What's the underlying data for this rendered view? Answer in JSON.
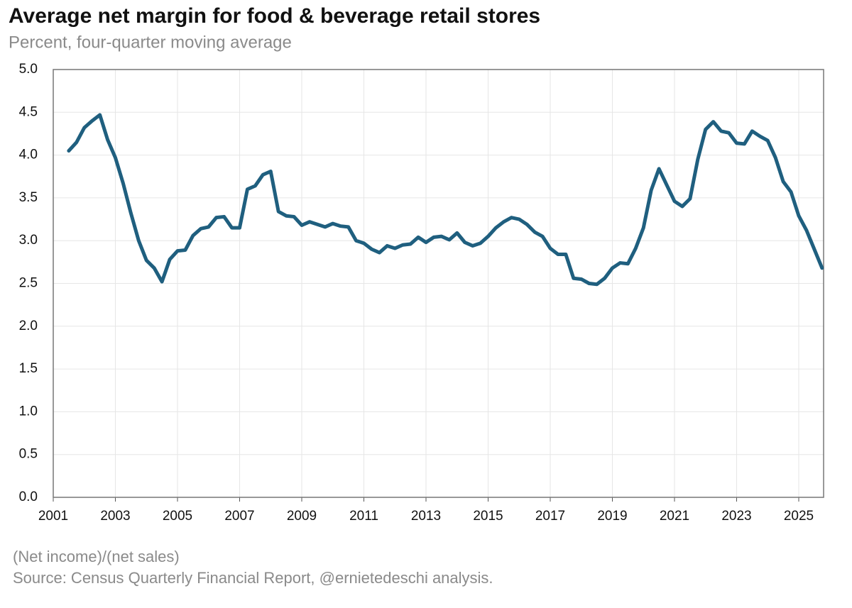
{
  "chart_data": {
    "type": "line",
    "title": "Average net margin for food & beverage retail stores",
    "subtitle": "Percent, four-quarter moving average",
    "notes": [
      "(Net income)/(net sales)",
      "Source: Census Quarterly Financial Report, @ernietedeschi analysis."
    ],
    "x": [
      2001.5,
      2001.75,
      2002,
      2002.25,
      2002.5,
      2002.75,
      2003,
      2003.25,
      2003.5,
      2003.75,
      2004,
      2004.25,
      2004.5,
      2004.75,
      2005,
      2005.25,
      2005.5,
      2005.75,
      2006,
      2006.25,
      2006.5,
      2006.75,
      2007,
      2007.25,
      2007.5,
      2007.75,
      2008,
      2008.25,
      2008.5,
      2008.75,
      2009,
      2009.25,
      2009.5,
      2009.75,
      2010,
      2010.25,
      2010.5,
      2010.75,
      2011,
      2011.25,
      2011.5,
      2011.75,
      2012,
      2012.25,
      2012.5,
      2012.75,
      2013,
      2013.25,
      2013.5,
      2013.75,
      2014,
      2014.25,
      2014.5,
      2014.75,
      2015,
      2015.25,
      2015.5,
      2015.75,
      2016,
      2016.25,
      2016.5,
      2016.75,
      2017,
      2017.25,
      2017.5,
      2017.75,
      2018,
      2018.25,
      2018.5,
      2018.75,
      2019,
      2019.25,
      2019.5,
      2019.75,
      2020,
      2020.25,
      2020.5,
      2020.75,
      2021,
      2021.25,
      2021.5,
      2021.75,
      2022,
      2022.25,
      2022.5,
      2022.75,
      2023,
      2023.25,
      2023.5,
      2023.75,
      2024,
      2024.25,
      2024.5,
      2024.75,
      2025,
      2025.25,
      2025.5,
      2025.75
    ],
    "values": [
      4.05,
      4.15,
      4.32,
      4.4,
      4.47,
      4.18,
      3.97,
      3.67,
      3.32,
      3.0,
      2.77,
      2.68,
      2.52,
      2.78,
      2.88,
      2.89,
      3.06,
      3.14,
      3.16,
      3.27,
      3.28,
      3.15,
      3.15,
      3.6,
      3.64,
      3.77,
      3.81,
      3.34,
      3.29,
      3.28,
      3.18,
      3.22,
      3.19,
      3.16,
      3.2,
      3.17,
      3.16,
      3.0,
      2.97,
      2.9,
      2.86,
      2.94,
      2.91,
      2.95,
      2.96,
      3.04,
      2.98,
      3.04,
      3.05,
      3.01,
      3.09,
      2.98,
      2.94,
      2.97,
      3.05,
      3.15,
      3.22,
      3.27,
      3.25,
      3.19,
      3.1,
      3.05,
      2.91,
      2.84,
      2.84,
      2.56,
      2.55,
      2.5,
      2.49,
      2.56,
      2.68,
      2.74,
      2.73,
      2.91,
      3.15,
      3.59,
      3.84,
      3.65,
      3.46,
      3.4,
      3.49,
      3.95,
      4.3,
      4.39,
      4.28,
      4.26,
      4.14,
      4.13,
      4.28,
      4.22,
      4.17,
      3.97,
      3.69,
      3.57,
      3.29,
      3.12,
      2.9,
      2.68
    ],
    "color": "#1f5f7f",
    "xlim": [
      2001,
      2025.8
    ],
    "xticks": [
      2001,
      2003,
      2005,
      2007,
      2009,
      2011,
      2013,
      2015,
      2017,
      2019,
      2021,
      2023,
      2025
    ],
    "ylim": [
      0,
      5
    ],
    "yticks": [
      {
        "value": 0,
        "label": "0.0"
      },
      {
        "value": 0.5,
        "label": "0.5"
      },
      {
        "value": 1,
        "label": "1.0"
      },
      {
        "value": 1.5,
        "label": "1.5"
      },
      {
        "value": 2,
        "label": "2.0"
      },
      {
        "value": 2.5,
        "label": "2.5"
      },
      {
        "value": 3,
        "label": "3.0"
      },
      {
        "value": 3.5,
        "label": "3.5"
      },
      {
        "value": 4,
        "label": "4.0"
      },
      {
        "value": 4.5,
        "label": "4.5"
      },
      {
        "value": 5,
        "label": "5.0"
      }
    ],
    "grid": true
  }
}
